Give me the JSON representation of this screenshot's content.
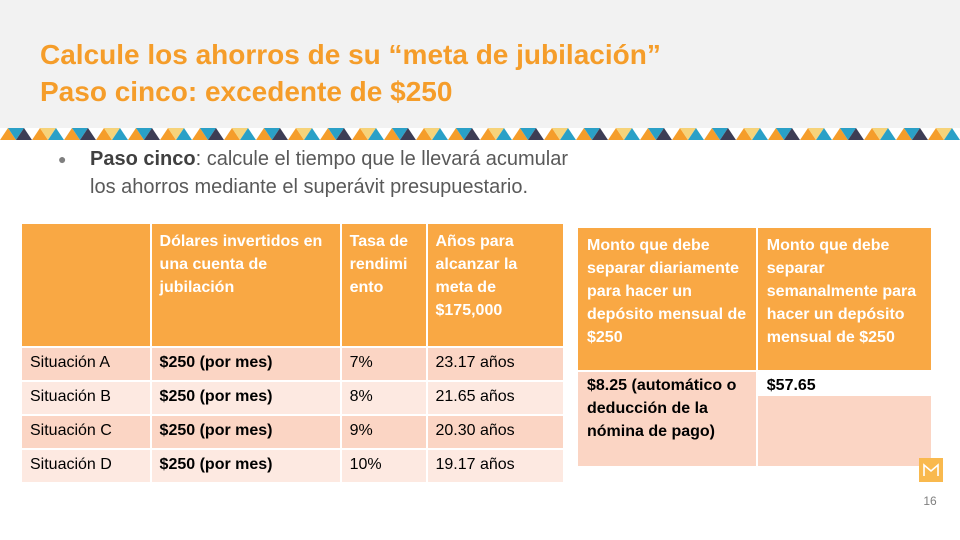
{
  "slide": {
    "title_line1": "Calcule los ahorros de su “meta de jubilación”",
    "title_line2": "Paso cinco: excedente de $250",
    "bullet_bold": "Paso cinco",
    "bullet_rest_line1": ": calcule el tiempo que le llevará acumular",
    "bullet_line2": "los ahorros mediante el superávit presupuestario.",
    "page_number": "16"
  },
  "main_table": {
    "headers": [
      "",
      "Dólares invertidos en una cuenta de jubilación",
      "Tasa de rendimi ento",
      "Años para alcanzar la meta de $175,000"
    ],
    "rows": [
      [
        "Situación A",
        "$250 (por mes)",
        "7%",
        "23.17 años"
      ],
      [
        "Situación B",
        "$250 (por mes)",
        "8%",
        "21.65 años"
      ],
      [
        "Situación C",
        "$250 (por mes)",
        "9%",
        "20.30 años"
      ],
      [
        "Situación D",
        "$250 (por mes)",
        "10%",
        "19.17 años"
      ]
    ]
  },
  "side_table": {
    "headers": [
      "Monto que debe separar diariamente para hacer un depósito mensual de $250",
      "Monto que debe separar semanalmente para hacer un depósito mensual de $250"
    ],
    "values": [
      "$8.25 (automático o deducción de la nómina de pago)",
      "$57.65"
    ]
  },
  "colors": {
    "title": "#f59d2a",
    "table_header": "#f9a844",
    "row_dark": "#fbd5c4",
    "row_light": "#fde9e1"
  },
  "icons": {
    "logo": "m-logo-icon"
  }
}
